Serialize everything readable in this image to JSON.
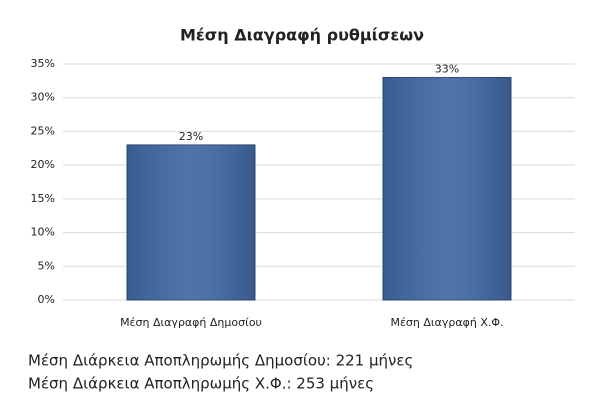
{
  "chart_data": {
    "type": "bar",
    "title": "Μέση Διαγραφή ρυθμίσεων",
    "categories": [
      "Μέση Διαγραφή Δημοσίου",
      "Μέση Διαγραφή Χ.Φ."
    ],
    "values": [
      23,
      33
    ],
    "value_labels": [
      "23%",
      "33%"
    ],
    "color": "#4068a3",
    "ylim": [
      0,
      35
    ],
    "yticks": [
      {
        "value": 0,
        "label": "0%"
      },
      {
        "value": 5,
        "label": "5%"
      },
      {
        "value": 10,
        "label": "10%"
      },
      {
        "value": 15,
        "label": "15%"
      },
      {
        "value": 20,
        "label": "20%"
      },
      {
        "value": 25,
        "label": "25%"
      },
      {
        "value": 30,
        "label": "30%"
      },
      {
        "value": 35,
        "label": "35%"
      }
    ],
    "grid": true
  },
  "notes": [
    "Μέση Διάρκεια Αποπληρωμής Δημοσίου: 221 μήνες",
    "Μέση Διάρκεια Αποπληρωμής Χ.Φ.: 253 μήνες"
  ]
}
